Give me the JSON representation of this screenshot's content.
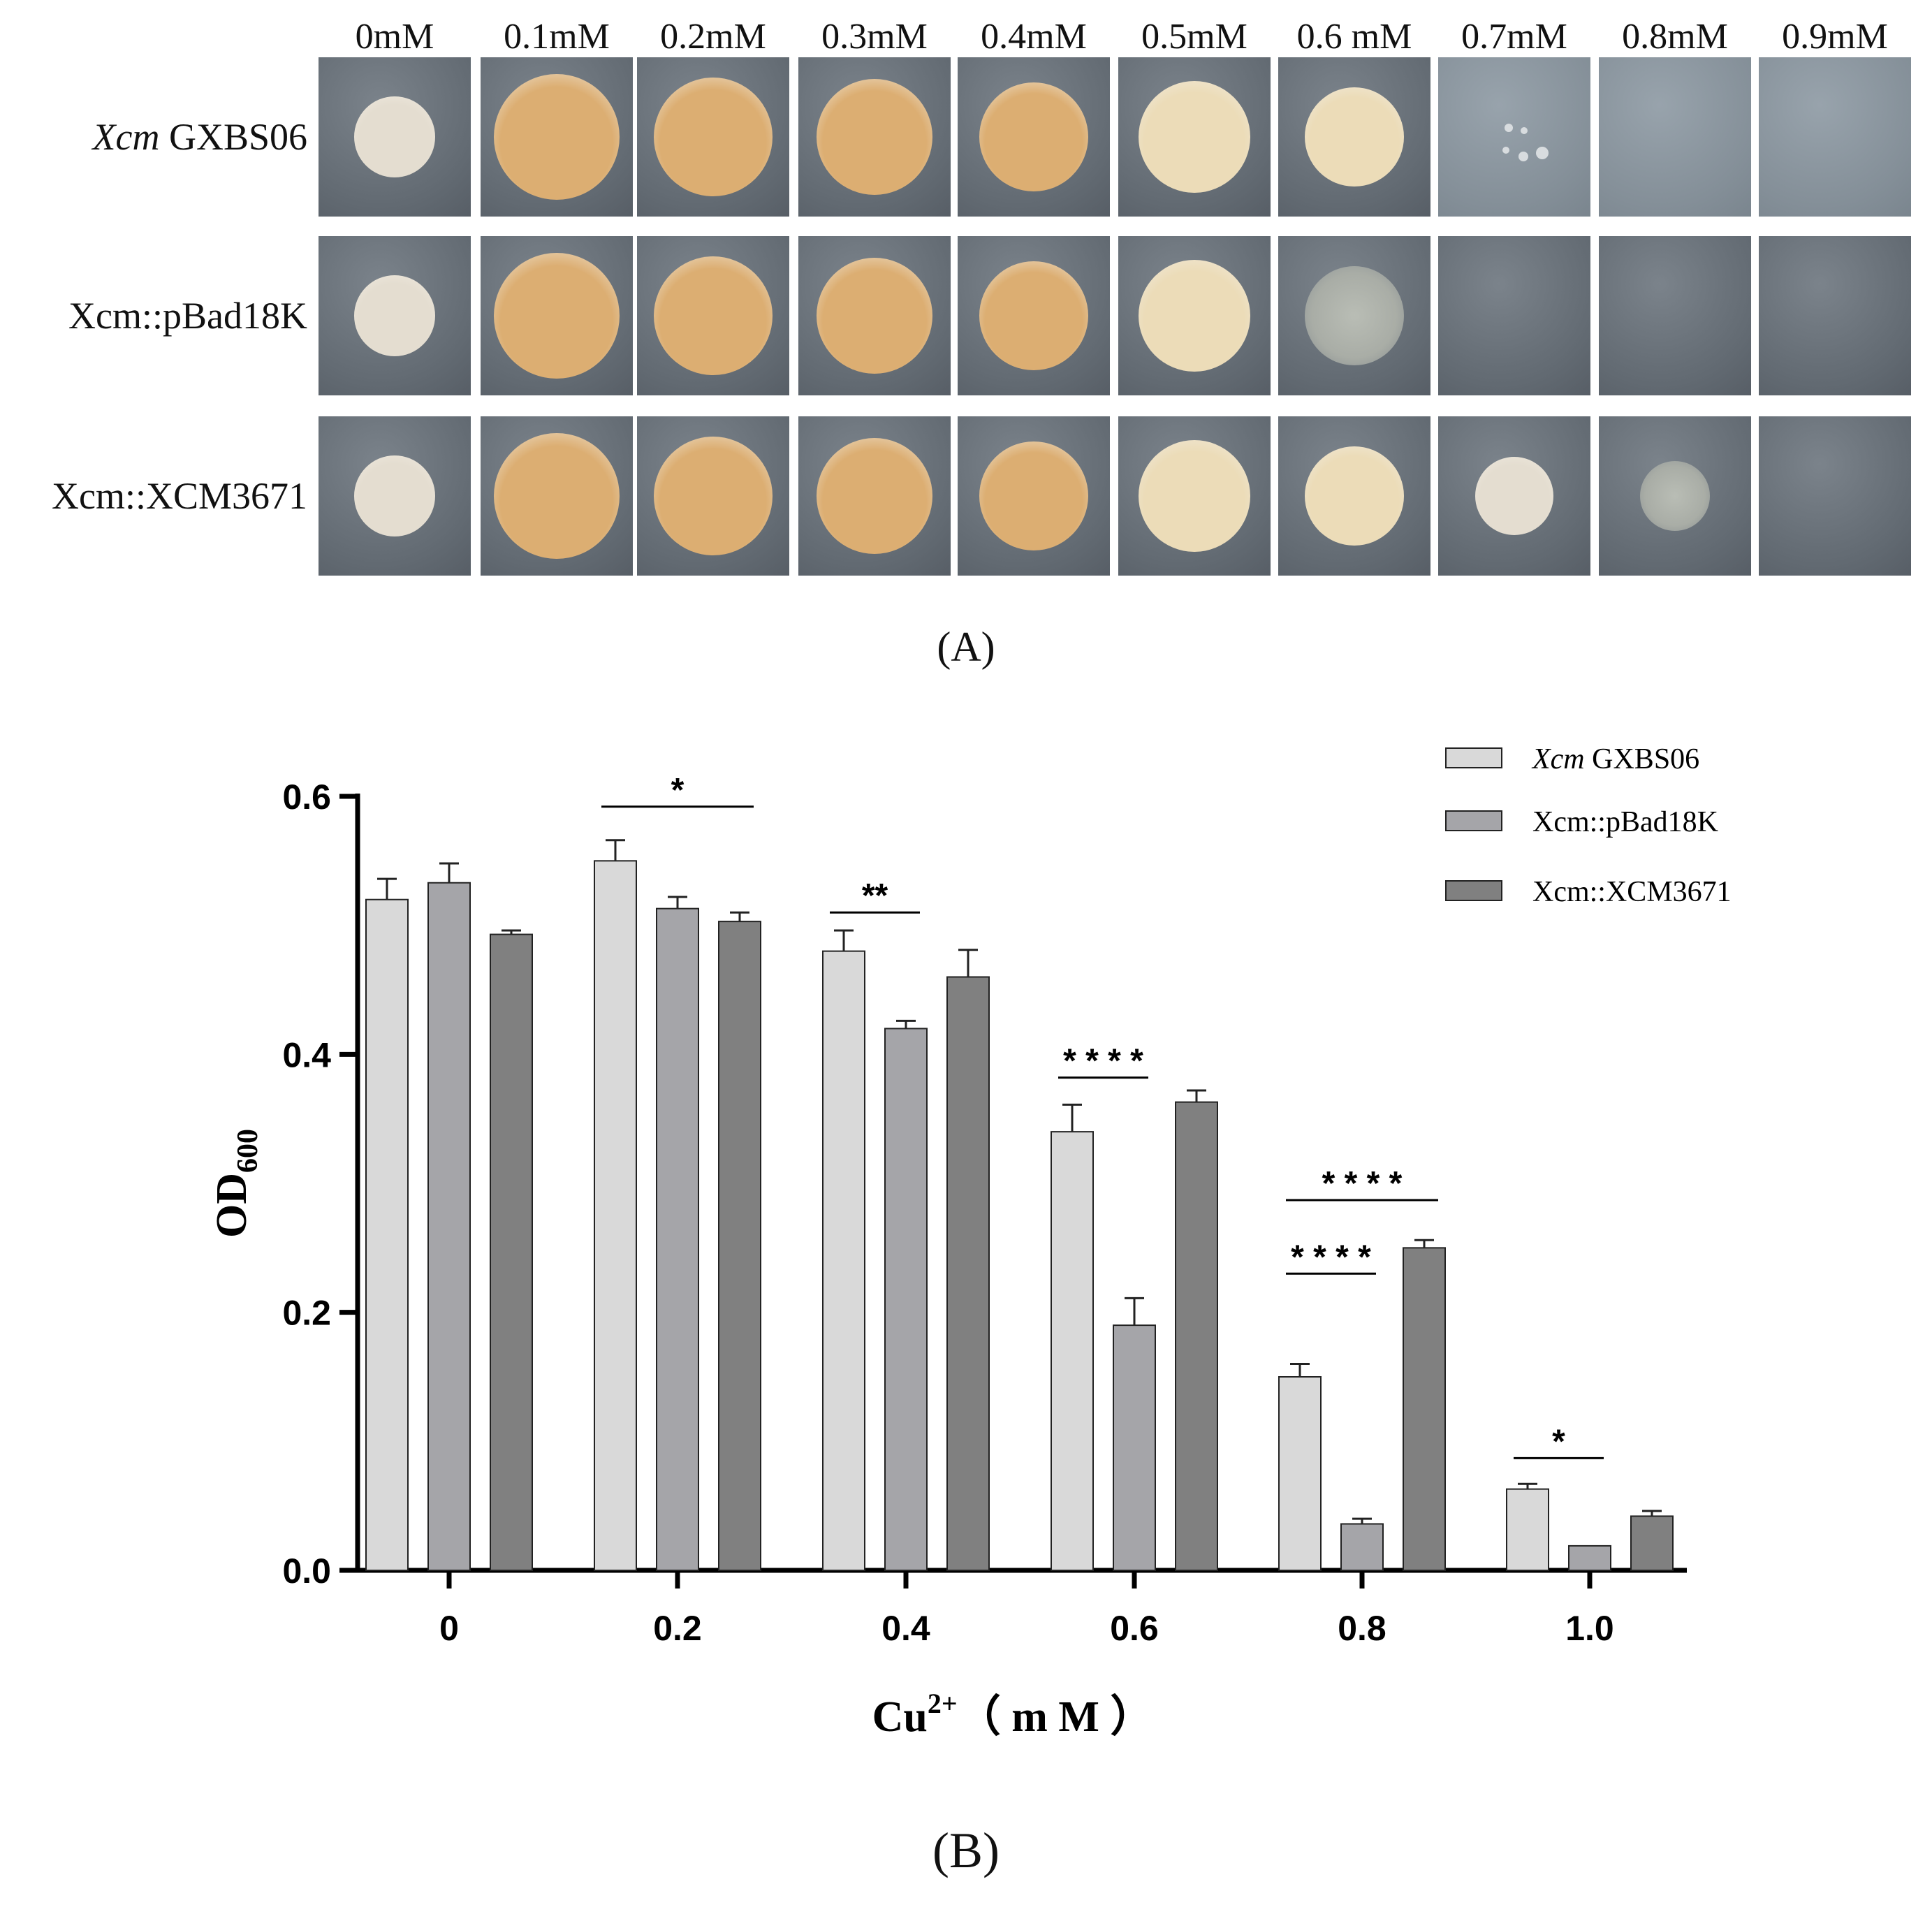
{
  "panel_a": {
    "caption": "(A)",
    "concentrations": [
      "0mM",
      "0.1mM",
      "0.2mM",
      "0.3mM",
      "0.4mM",
      "0.5mM",
      "0.6 mM",
      "0.7mM",
      "0.8mM",
      "0.9mM"
    ],
    "strains": [
      {
        "italic": "Xcm",
        "rest": " GXBS06"
      },
      {
        "italic": "",
        "rest": "Xcm::pBad18K"
      },
      {
        "italic": "",
        "rest": "Xcm::XCM3671"
      }
    ],
    "growth": [
      [
        "full",
        "full",
        "full",
        "full",
        "full",
        "full",
        "full",
        "trace",
        "none",
        "none"
      ],
      [
        "full",
        "full",
        "full",
        "full",
        "full",
        "full",
        "faint",
        "none",
        "none",
        "none"
      ],
      [
        "full",
        "full",
        "full",
        "full",
        "full",
        "full",
        "full",
        "full",
        "faint",
        "none"
      ]
    ],
    "colors": {
      "colony_pale": "#e4ddd0",
      "colony_orange": "#dcae72",
      "colony_cream": "#ecdcb8"
    }
  },
  "panel_b": {
    "caption": "(B)"
  },
  "chart_data": {
    "type": "bar",
    "categories": [
      "0",
      "0.2",
      "0.4",
      "0.6",
      "0.8",
      "1.0"
    ],
    "series": [
      {
        "name": "GXBS06",
        "name_italic_prefix": "Xcm",
        "color": "#d9d9d9",
        "values": [
          0.52,
          0.55,
          0.48,
          0.34,
          0.15,
          0.063
        ],
        "errors": [
          0.016,
          0.016,
          0.016,
          0.021,
          0.01,
          0.004
        ]
      },
      {
        "name": "Xcm::pBad18K",
        "name_italic_prefix": "",
        "color": "#a5a5a9",
        "values": [
          0.533,
          0.513,
          0.42,
          0.19,
          0.036,
          0.019
        ],
        "errors": [
          0.015,
          0.009,
          0.006,
          0.021,
          0.004,
          0.0
        ]
      },
      {
        "name": "Xcm::XCM3671",
        "name_italic_prefix": "",
        "color": "#808080",
        "values": [
          0.493,
          0.503,
          0.46,
          0.363,
          0.25,
          0.042
        ],
        "errors": [
          0.003,
          0.007,
          0.021,
          0.009,
          0.006,
          0.004
        ]
      }
    ],
    "ylabel": "OD",
    "ylabel_sub": "600",
    "xlabel_main": "Cu",
    "xlabel_sup": "2+",
    "xlabel_unit": "（ m M ）",
    "ylim": [
      0,
      0.6
    ],
    "yticks": [
      "0.0",
      "0.2",
      "0.4",
      "0.6"
    ],
    "legend_position": "top-right",
    "grid": false,
    "significance": [
      {
        "group": 1,
        "from": 0,
        "to": 2,
        "label": "*",
        "y": 0.592
      },
      {
        "group": 2,
        "from": 0,
        "to": 1,
        "label": "**",
        "y": 0.51
      },
      {
        "group": 3,
        "from": 0,
        "to": 1,
        "label": "* * * *",
        "y": 0.382
      },
      {
        "group": 4,
        "from": 0,
        "to": 2,
        "label": "* * * *",
        "y": 0.287
      },
      {
        "group": 4,
        "from": 0,
        "to": 1,
        "label": "* * * *",
        "y": 0.23
      },
      {
        "group": 5,
        "from": 0,
        "to": 1,
        "label": "*",
        "y": 0.087
      }
    ]
  }
}
